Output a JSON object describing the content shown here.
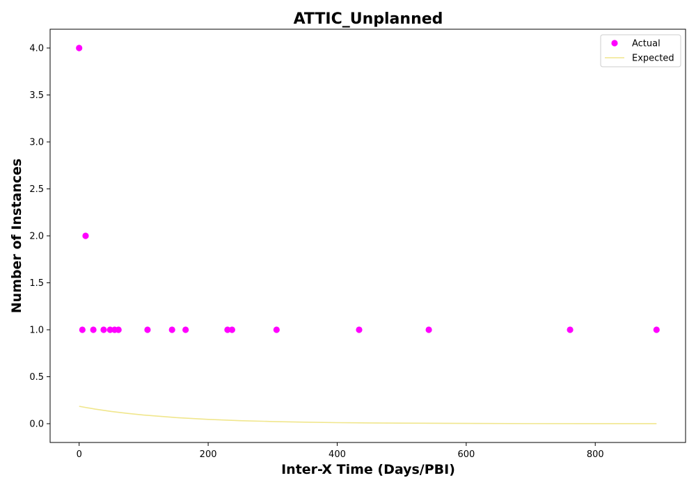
{
  "chart_data": {
    "type": "scatter",
    "title": "ATTIC_Unplanned",
    "xlabel": "Inter-X Time (Days/PBI)",
    "ylabel": "Number of Instances",
    "xlim": [
      -45,
      940
    ],
    "ylim": [
      -0.2,
      4.2
    ],
    "x_ticks": [
      0,
      200,
      400,
      600,
      800
    ],
    "y_ticks": [
      0.0,
      0.5,
      1.0,
      1.5,
      2.0,
      2.5,
      3.0,
      3.5,
      4.0
    ],
    "x_tick_labels": [
      "0",
      "200",
      "400",
      "600",
      "800"
    ],
    "y_tick_labels": [
      "0.0",
      "0.5",
      "1.0",
      "1.5",
      "2.0",
      "2.5",
      "3.0",
      "3.5",
      "4.0"
    ],
    "grid": false,
    "legend_position": "top-right",
    "series": [
      {
        "name": "Actual",
        "kind": "scatter",
        "color": "#ff00ff",
        "points": [
          {
            "x": 0,
            "y": 4
          },
          {
            "x": 10,
            "y": 2
          },
          {
            "x": 5,
            "y": 1
          },
          {
            "x": 22,
            "y": 1
          },
          {
            "x": 38,
            "y": 1
          },
          {
            "x": 48,
            "y": 1
          },
          {
            "x": 55,
            "y": 1
          },
          {
            "x": 61,
            "y": 1
          },
          {
            "x": 106,
            "y": 1
          },
          {
            "x": 144,
            "y": 1
          },
          {
            "x": 165,
            "y": 1
          },
          {
            "x": 230,
            "y": 1
          },
          {
            "x": 237,
            "y": 1
          },
          {
            "x": 306,
            "y": 1
          },
          {
            "x": 434,
            "y": 1
          },
          {
            "x": 542,
            "y": 1
          },
          {
            "x": 761,
            "y": 1
          },
          {
            "x": 895,
            "y": 1
          }
        ]
      },
      {
        "name": "Expected",
        "kind": "line",
        "color": "#f0e68c",
        "points": [
          {
            "x": 0,
            "y": 0.185
          },
          {
            "x": 25,
            "y": 0.155
          },
          {
            "x": 50,
            "y": 0.13
          },
          {
            "x": 75,
            "y": 0.11
          },
          {
            "x": 100,
            "y": 0.092
          },
          {
            "x": 150,
            "y": 0.065
          },
          {
            "x": 200,
            "y": 0.046
          },
          {
            "x": 250,
            "y": 0.032
          },
          {
            "x": 300,
            "y": 0.023
          },
          {
            "x": 350,
            "y": 0.016
          },
          {
            "x": 400,
            "y": 0.011
          },
          {
            "x": 450,
            "y": 0.008
          },
          {
            "x": 500,
            "y": 0.006
          },
          {
            "x": 600,
            "y": 0.003
          },
          {
            "x": 700,
            "y": 0.001
          },
          {
            "x": 800,
            "y": 0.0005
          },
          {
            "x": 895,
            "y": 0.0002
          }
        ]
      }
    ]
  }
}
